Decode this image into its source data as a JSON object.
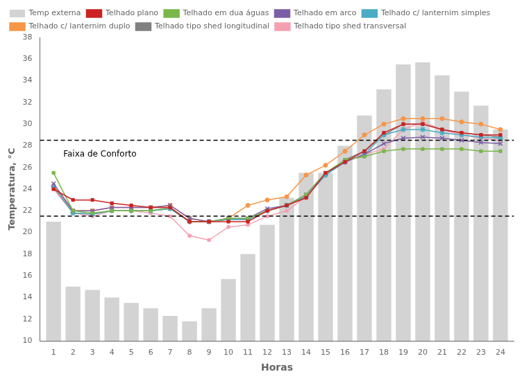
{
  "chart_data": {
    "type": "bar",
    "xlabel": "Horas",
    "ylabel": "Temperatura, °C",
    "x": [
      1,
      2,
      3,
      4,
      5,
      6,
      7,
      8,
      9,
      10,
      11,
      12,
      13,
      14,
      15,
      16,
      17,
      18,
      19,
      20,
      21,
      22,
      23,
      24
    ],
    "xlim": [
      0.3,
      24.7
    ],
    "xticks": [
      1,
      2,
      3,
      4,
      5,
      6,
      7,
      8,
      9,
      10,
      11,
      12,
      13,
      14,
      15,
      16,
      17,
      18,
      19,
      20,
      21,
      22,
      23,
      24
    ],
    "ylim": [
      10,
      38
    ],
    "yticks": [
      10,
      12,
      14,
      16,
      18,
      20,
      22,
      24,
      26,
      28,
      30,
      32,
      34,
      36,
      38
    ],
    "grid": false,
    "legend": "upper left",
    "series": [
      {
        "name": "Temp externa",
        "type": "bar",
        "color": "#d3d3d3",
        "values": [
          21.0,
          15.0,
          14.7,
          14.0,
          13.5,
          13.0,
          12.3,
          11.8,
          13.0,
          15.7,
          18.0,
          20.7,
          23.2,
          25.5,
          25.5,
          28.0,
          30.8,
          33.2,
          35.5,
          35.7,
          34.5,
          33.0,
          31.7,
          29.5
        ]
      },
      {
        "name": "Telhado plano",
        "type": "line",
        "color": "#cc2222",
        "marker": "square",
        "values": [
          24.0,
          23.0,
          23.0,
          22.7,
          22.5,
          22.3,
          22.3,
          21.0,
          21.0,
          21.0,
          21.0,
          22.0,
          22.5,
          23.2,
          25.5,
          26.5,
          27.5,
          29.2,
          30.0,
          30.0,
          29.5,
          29.2,
          29.0,
          29.0
        ]
      },
      {
        "name": "Telhado em dua águas",
        "type": "line",
        "color": "#7ab648",
        "marker": "square",
        "values": [
          25.5,
          22.0,
          21.8,
          22.0,
          22.0,
          22.0,
          22.3,
          21.0,
          21.0,
          21.3,
          21.3,
          22.0,
          22.5,
          23.5,
          25.5,
          26.7,
          27.0,
          27.5,
          27.7,
          27.7,
          27.7,
          27.7,
          27.5,
          27.5
        ]
      },
      {
        "name": "Telhado em arco",
        "type": "line",
        "color": "#7b5ea7",
        "marker": "x",
        "values": [
          24.5,
          22.0,
          22.0,
          22.3,
          22.3,
          22.3,
          22.5,
          21.3,
          21.0,
          21.3,
          21.3,
          22.2,
          22.5,
          23.5,
          25.5,
          26.5,
          27.2,
          28.2,
          28.7,
          28.8,
          28.7,
          28.5,
          28.3,
          28.2
        ]
      },
      {
        "name": "Telhado c/ lanternim simples",
        "type": "line",
        "color": "#4bacc6",
        "marker": "star",
        "values": [
          24.2,
          21.8,
          21.7,
          22.0,
          22.0,
          22.0,
          22.2,
          21.0,
          21.0,
          21.2,
          21.2,
          22.0,
          22.5,
          23.3,
          25.3,
          26.5,
          27.2,
          29.0,
          29.5,
          29.5,
          29.2,
          29.0,
          28.8,
          28.7
        ]
      },
      {
        "name": "Telhado c/ lanternim duplo",
        "type": "line",
        "color": "#f79646",
        "marker": "circle",
        "values": [
          24.3,
          22.0,
          22.0,
          22.3,
          22.3,
          22.3,
          22.5,
          21.3,
          21.0,
          21.3,
          22.5,
          23.0,
          23.3,
          25.3,
          26.2,
          27.5,
          29.0,
          30.0,
          30.5,
          30.5,
          30.5,
          30.2,
          30.0,
          29.5
        ]
      },
      {
        "name": "Telhado tipo shed longitudinal",
        "type": "line",
        "color": "#808080",
        "marker": "square",
        "values": [
          24.3,
          21.8,
          21.7,
          22.0,
          22.0,
          22.0,
          22.2,
          21.0,
          21.0,
          21.2,
          21.2,
          22.0,
          22.5,
          23.3,
          25.3,
          26.7,
          27.5,
          29.0,
          30.0,
          30.0,
          29.5,
          29.2,
          29.0,
          28.8
        ]
      },
      {
        "name": "Telhado tipo shed transversal",
        "type": "line",
        "color": "#f4a0b0",
        "marker": "square",
        "values": [
          24.0,
          21.8,
          21.5,
          22.0,
          22.0,
          21.8,
          21.5,
          19.7,
          19.3,
          20.5,
          20.7,
          21.5,
          22.0,
          23.3,
          25.3,
          26.5,
          27.2,
          27.7,
          29.5,
          30.2,
          29.5,
          29.0,
          28.7,
          28.5
        ]
      }
    ],
    "reference_lines": [
      {
        "y": 28.5,
        "color": "#000000",
        "line_style": "dashed"
      },
      {
        "y": 21.5,
        "color": "#000000",
        "line_style": "dashed"
      }
    ],
    "annotations": [
      {
        "text": "Faixa de Conforto",
        "x": 1.5,
        "y": 27.2
      }
    ]
  }
}
